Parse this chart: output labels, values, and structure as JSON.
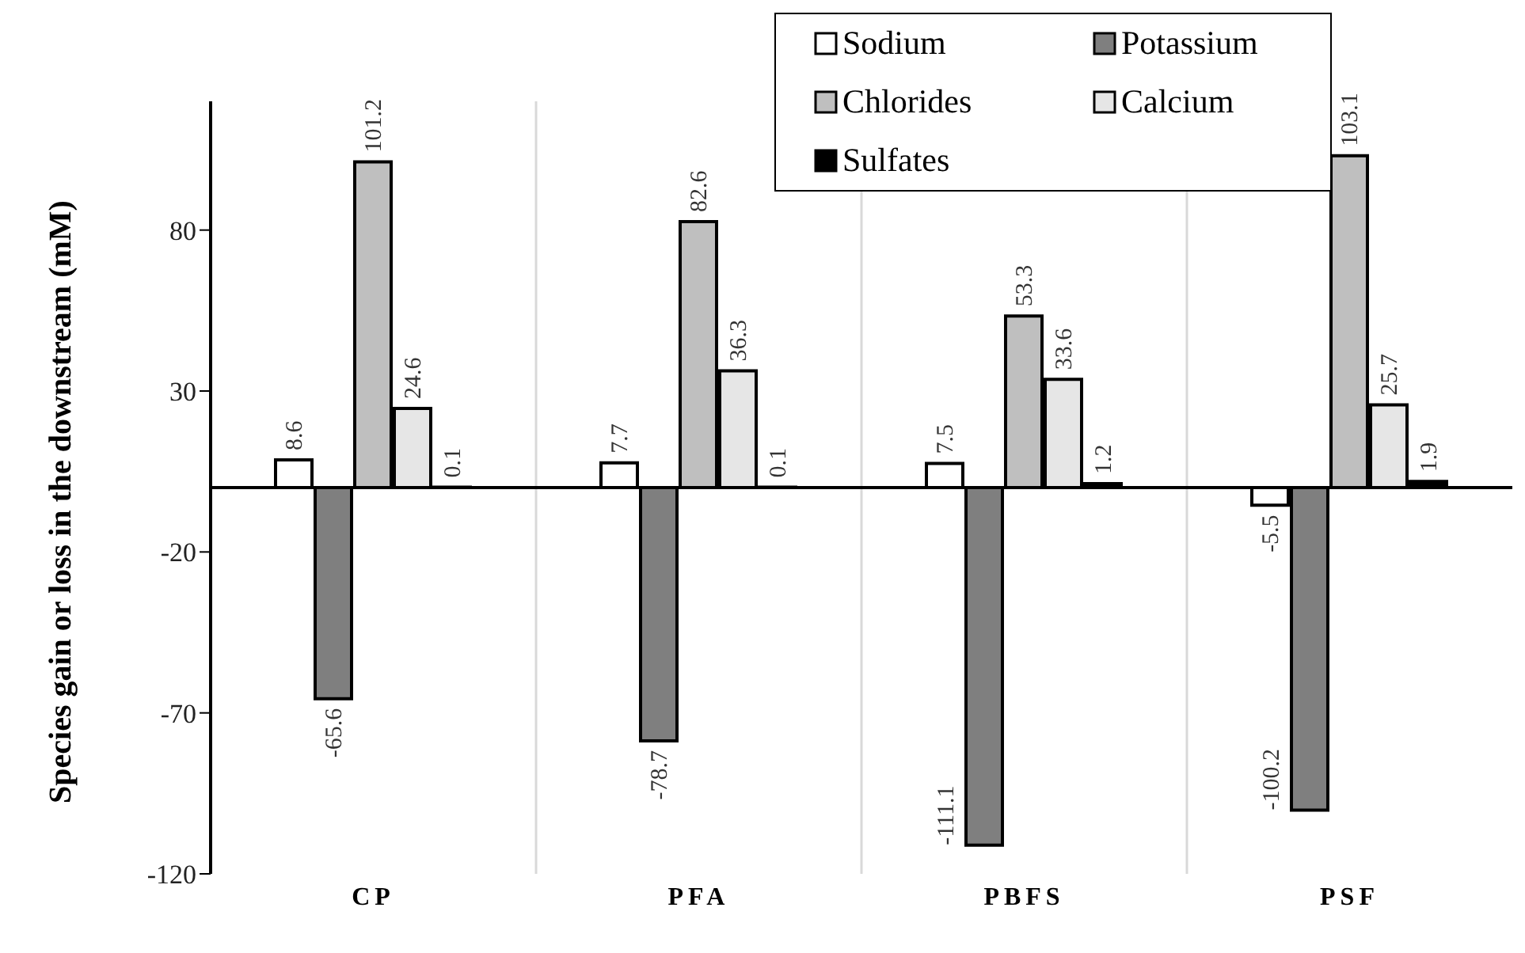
{
  "chart_data": {
    "type": "bar",
    "ylabel": "Species gain or loss in the downstream (mM)",
    "categories": [
      "CP",
      "PFA",
      "PBFS",
      "PSF"
    ],
    "series": [
      {
        "name": "Sodium",
        "color": "#ffffff",
        "values": [
          8.6,
          7.7,
          7.5,
          -5.5
        ]
      },
      {
        "name": "Potassium",
        "color": "#7f7f7f",
        "values": [
          -65.6,
          -78.7,
          -111.1,
          -100.2
        ]
      },
      {
        "name": "Chlorides",
        "color": "#bfbfbf",
        "values": [
          101.2,
          82.6,
          53.3,
          103.1
        ]
      },
      {
        "name": "Calcium",
        "color": "#e6e6e6",
        "values": [
          24.6,
          36.3,
          33.6,
          25.7
        ]
      },
      {
        "name": "Sulfates",
        "color": "#000000",
        "values": [
          0.1,
          0.1,
          1.2,
          1.9
        ]
      }
    ],
    "ylim": [
      -120,
      120
    ],
    "yticks": [
      -120,
      -70,
      -20,
      30,
      80
    ],
    "grid": "x",
    "legend": "top right",
    "data_labels": true
  }
}
